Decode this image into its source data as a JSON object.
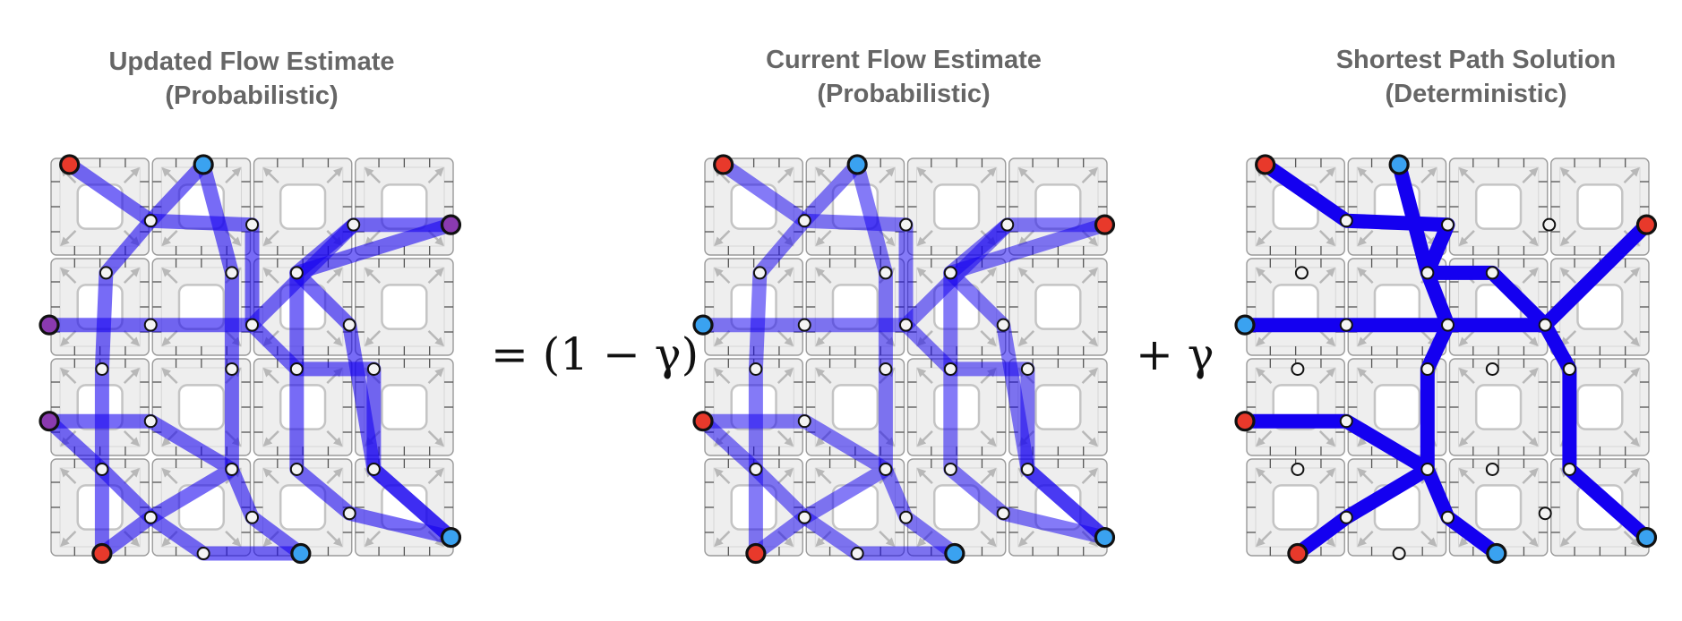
{
  "panels": [
    {
      "id": "updated",
      "title_lines": [
        "Updated Flow Estimate",
        "(Probabilistic)"
      ],
      "line_opacity": 0.58,
      "gamma_mark_index": 0
    },
    {
      "id": "current",
      "title_lines": [
        "Current Flow Estimate",
        "(Probabilistic)"
      ],
      "line_opacity": 0.52
    },
    {
      "id": "shortest",
      "title_lines": [
        "Shortest Path Solution",
        "(Deterministic)"
      ],
      "line_opacity": 1.0
    }
  ],
  "equation": {
    "equals_term": "= (1 − γ)",
    "plus_term": "+ γ"
  },
  "colors": {
    "flow": "#1400f0",
    "source_node": "#e8392b",
    "sink_node": "#3aa2f0",
    "grid_tile": "#eeeeee",
    "grid_stroke": "#9a9a9a",
    "title": "#666666"
  },
  "grid": {
    "rows": 4,
    "cols": 4
  }
}
